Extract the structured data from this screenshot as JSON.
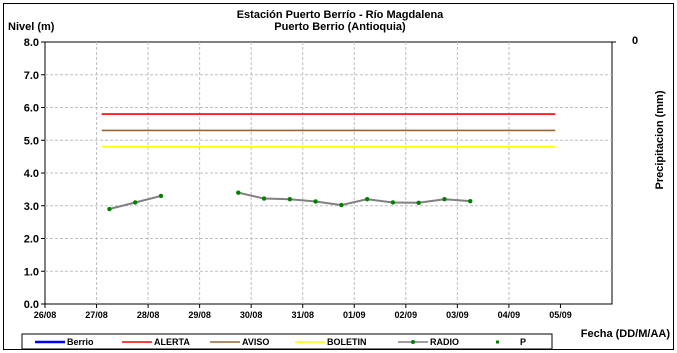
{
  "chart_data": {
    "type": "line",
    "title": "Estación Puerto Berrío - Río Magdalena",
    "subtitle": "Puerto Berrio (Antioquia)",
    "ylabel": "Nivel (m)",
    "y2label": "Precipitacion (mm)",
    "xlabel": "Fecha (DD/M/AA)",
    "ylim": [
      0,
      8
    ],
    "yticks": [
      "0.0",
      "1.0",
      "2.0",
      "3.0",
      "4.0",
      "5.0",
      "6.0",
      "7.0",
      "8.0"
    ],
    "y2ticks": [
      "0"
    ],
    "xlim": [
      0,
      11
    ],
    "xticks": [
      "26/08",
      "27/08",
      "28/08",
      "29/08",
      "30/08",
      "31/08",
      "01/09",
      "02/09",
      "03/09",
      "04/09",
      "05/09"
    ],
    "grid": true,
    "legend_position": "bottom",
    "series": [
      {
        "name": "Berrio",
        "color": "#0000ff",
        "x": [],
        "y": []
      },
      {
        "name": "ALERTA",
        "color": "#ff0000",
        "x": [
          1.1,
          9.9
        ],
        "y": [
          5.8,
          5.8
        ]
      },
      {
        "name": "AVISO",
        "color": "#996633",
        "x": [
          1.1,
          9.9
        ],
        "y": [
          5.3,
          5.3
        ]
      },
      {
        "name": "BOLETIN",
        "color": "#ffff00",
        "x": [
          1.1,
          9.9
        ],
        "y": [
          4.8,
          4.8
        ]
      },
      {
        "name": "RADIO",
        "color": "#808080",
        "marker_color": "#008000",
        "segments": [
          {
            "x": [
              1.25,
              1.75,
              2.25
            ],
            "y": [
              2.9,
              3.1,
              3.3
            ]
          },
          {
            "x": [
              3.75,
              4.25,
              4.75,
              5.25,
              5.75,
              6.25,
              6.75,
              7.25,
              7.75,
              8.25
            ],
            "y": [
              3.4,
              3.22,
              3.2,
              3.13,
              3.02,
              3.2,
              3.1,
              3.09,
              3.2,
              3.14
            ]
          }
        ]
      },
      {
        "name": "P",
        "color": "#008000",
        "x": [],
        "y": []
      }
    ]
  }
}
